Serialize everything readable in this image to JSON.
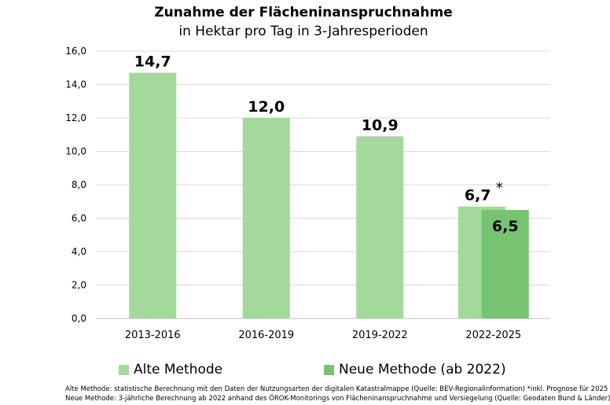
{
  "chart_data": {
    "type": "bar",
    "title": "Zunahme der Flächeninanspruchnahme",
    "subtitle": "in Hektar pro Tag in 3-Jahresperioden",
    "categories": [
      "2013-2016",
      "2016-2019",
      "2019-2022",
      "2022-2025"
    ],
    "series": [
      {
        "name": "Alte Methode",
        "color": "#a3d99b",
        "values": [
          14.7,
          12.0,
          10.9,
          6.7
        ],
        "labels": [
          "14,7",
          "12,0",
          "10,9",
          "6,7"
        ]
      },
      {
        "name": "Neue Methode (ab 2022)",
        "color": "#76c472",
        "values": [
          null,
          null,
          null,
          6.5
        ],
        "labels": [
          null,
          null,
          null,
          "6,5"
        ]
      }
    ],
    "annotation": "*",
    "ylim": [
      0,
      16
    ],
    "yticks": [
      "0,0",
      "2,0",
      "4,0",
      "6,0",
      "8,0",
      "10,0",
      "12,0",
      "14,0",
      "16,0"
    ],
    "grid": true,
    "legend": "bottom"
  },
  "footnote": {
    "line1": "Alte Methode:  statistische Berechnung mit den Daten der Nutzungsarten der digitalen Katastralmappe (Quelle: BEV-Regionalinformation) *inkl. Prognose für 2025",
    "line2": "Neue Methode: 3-jährliche Berechnung ab 2022 anhand des ÖROK-Monitorings von Flächeninanspruchnahme und Versiegelung (Quelle: Geodaten Bund & Länder)"
  }
}
